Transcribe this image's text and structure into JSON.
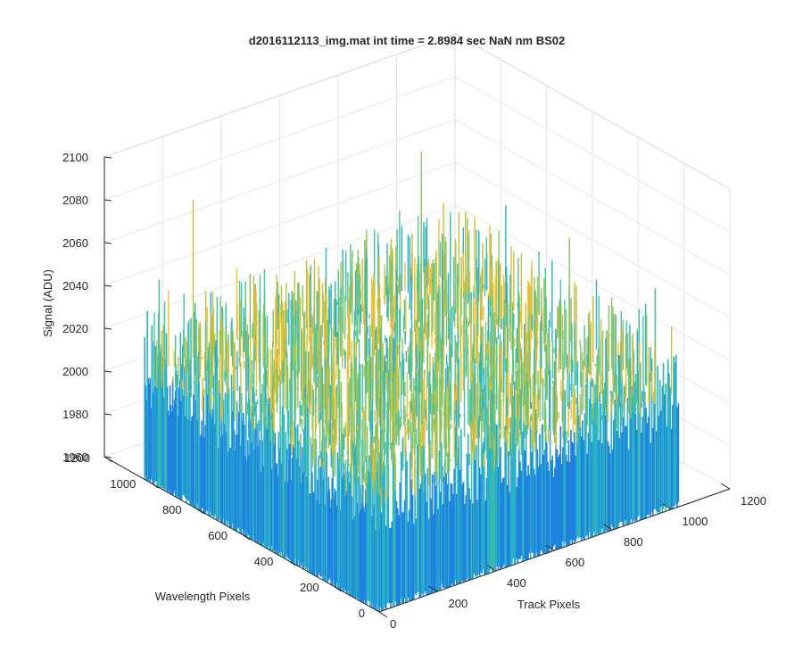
{
  "chart_data": {
    "type": "surface",
    "title": "d2016112113_img.mat int time = 2.8984 sec  NaN nm BS02",
    "xlabel": "Track Pixels",
    "ylabel": "Wavelength Pixels",
    "zlabel": "Signal (ADU)",
    "xlim": [
      0,
      1200
    ],
    "ylim": [
      0,
      1200
    ],
    "zlim": [
      1960,
      2100
    ],
    "x_ticks": [
      "0",
      "200",
      "400",
      "600",
      "800",
      "1000",
      "1200"
    ],
    "y_ticks": [
      "0",
      "200",
      "400",
      "600",
      "800",
      "1000",
      "1200"
    ],
    "z_ticks": [
      "1960",
      "1980",
      "2000",
      "2020",
      "2040",
      "2060",
      "2080",
      "2100"
    ],
    "grid": true,
    "box": "on",
    "surface_extent": {
      "x": [
        0,
        1024
      ],
      "y": [
        0,
        1024
      ]
    },
    "z_range": [
      1960,
      2100
    ],
    "typical_level": 2010,
    "colormap": [
      "#0a50d8",
      "#1f82e0",
      "#2ab0c7",
      "#4ac29c",
      "#86c466",
      "#c6bd3d",
      "#f2c02c"
    ]
  }
}
